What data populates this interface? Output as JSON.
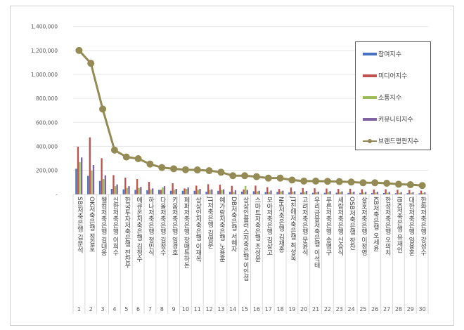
{
  "chart_data": {
    "type": "bar",
    "title": "",
    "xlabel": "",
    "ylabel": "",
    "ylim": [
      0,
      1400000
    ],
    "yticks": [
      "-",
      "200,000",
      "400,000",
      "600,000",
      "800,000",
      "1,000,000",
      "1,200,000",
      "1,400,000"
    ],
    "grid": true,
    "legend": "top-right",
    "categories": [
      "1",
      "2",
      "3",
      "4",
      "5",
      "6",
      "7",
      "8",
      "9",
      "10",
      "11",
      "12",
      "13",
      "14",
      "15",
      "16",
      "17",
      "18",
      "19",
      "20",
      "21",
      "22",
      "23",
      "24",
      "25",
      "26",
      "27",
      "28",
      "29",
      "30"
    ],
    "category_names": [
      "SBI저축은행 김문석",
      "OK저축은행 정길호",
      "웰컴저축은행 김대웅",
      "신한저축은행 이희수",
      "한국투자저축은행 전찬우",
      "애큐온저축은행 김정수",
      "하나저축은행 정민식",
      "다올저축은행 김정수",
      "키움저축은행 임경호",
      "페퍼저축은행 장매튜하돈",
      "상상인저축은행 이재옥",
      "JT저축은행 김영문",
      "예가람저축은행 노용훈",
      "DB저축은행 서혜자",
      "상상인플러스저축은행 이인섭",
      "스마트저축은행 조성윤",
      "모아저축은행 김상고",
      "NH저축은행 김재홍",
      "JT친애저축은행 최성욱",
      "고려저축은행 문윤석",
      "우리금융저축은행 이석태",
      "푸른저축은행 송명구",
      "세람저축은행 신승식",
      "OSB저축은행 장찬",
      "삼호저축은행 이정영",
      "KB저축은행 오세윤",
      "한성저축은행 오의치",
      "IBK저축은행 유재인",
      "대한저축은행 임용훈",
      "한화저축은행 강성수"
    ],
    "series": [
      {
        "name": "참여지수",
        "kind": "bar",
        "color": "#4472c4",
        "values": [
          213000,
          154000,
          111000,
          45000,
          41000,
          37000,
          33000,
          37000,
          29000,
          29000,
          29000,
          21000,
          29000,
          20000,
          22000,
          25000,
          18000,
          20000,
          15000,
          14000,
          12000,
          12000,
          13000,
          11000,
          11000,
          10000,
          10000,
          9000,
          9000,
          8000
        ]
      },
      {
        "name": "미디어지수",
        "kind": "bar",
        "color": "#c0504d",
        "values": [
          397000,
          475000,
          301000,
          160000,
          139000,
          127000,
          104000,
          37000,
          92000,
          49000,
          72000,
          84000,
          80000,
          70000,
          40000,
          72000,
          60000,
          44000,
          56000,
          52000,
          50000,
          48000,
          45000,
          46000,
          42000,
          40000,
          42000,
          38000,
          36000,
          30000
        ]
      },
      {
        "name": "소통지수",
        "kind": "bar",
        "color": "#9bbb59",
        "values": [
          268000,
          197000,
          127000,
          68000,
          53000,
          53000,
          41000,
          57000,
          37000,
          45000,
          37000,
          37000,
          37000,
          20000,
          70000,
          24000,
          20000,
          25000,
          22000,
          18000,
          16000,
          20000,
          18000,
          15000,
          14000,
          15000,
          13000,
          12000,
          12000,
          11000
        ]
      },
      {
        "name": "커뮤니티지수",
        "kind": "bar",
        "color": "#8064a2",
        "values": [
          307000,
          244000,
          158000,
          82000,
          68000,
          61000,
          49000,
          68000,
          45000,
          57000,
          45000,
          41000,
          41000,
          33000,
          36000,
          29000,
          31000,
          30000,
          25000,
          28000,
          22000,
          26000,
          24000,
          22000,
          20000,
          20000,
          19000,
          18000,
          17000,
          16000
        ]
      },
      {
        "name": "브랜드평판지수",
        "kind": "line",
        "color": "#948a54",
        "values": [
          1200000,
          1093000,
          711000,
          369000,
          311000,
          297000,
          252000,
          223000,
          213000,
          205000,
          203000,
          197000,
          184000,
          155000,
          155000,
          147000,
          135000,
          135000,
          119000,
          110000,
          110000,
          108000,
          106000,
          102000,
          96000,
          96000,
          92000,
          84000,
          80000,
          73000
        ]
      }
    ]
  }
}
